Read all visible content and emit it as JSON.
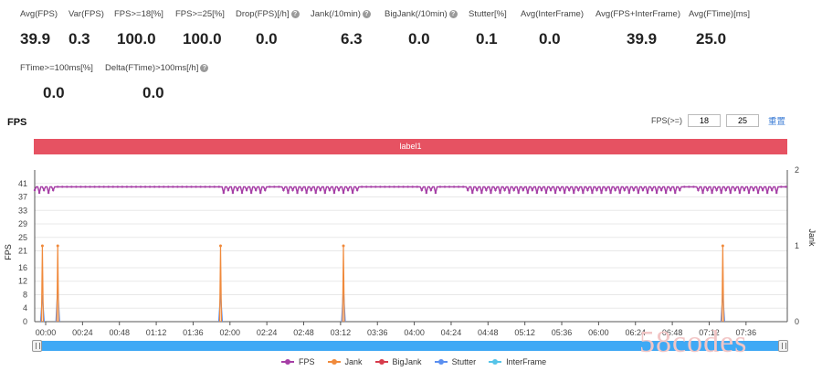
{
  "metrics": [
    {
      "id": "avg-fps",
      "label": "Avg(FPS)",
      "value": "39.9",
      "help": false
    },
    {
      "id": "var-fps",
      "label": "Var(FPS)",
      "value": "0.3",
      "help": false
    },
    {
      "id": "fps-ge-18",
      "label": "FPS>=18[%]",
      "value": "100.0",
      "help": false
    },
    {
      "id": "fps-ge-25",
      "label": "FPS>=25[%]",
      "value": "100.0",
      "help": false
    },
    {
      "id": "drop-fps",
      "label": "Drop(FPS)[/h]",
      "value": "0.0",
      "help": true
    },
    {
      "id": "jank",
      "label": "Jank(/10min)",
      "value": "6.3",
      "help": true
    },
    {
      "id": "bigjank",
      "label": "BigJank(/10min)",
      "value": "0.0",
      "help": true
    },
    {
      "id": "stutter",
      "label": "Stutter[%]",
      "value": "0.1",
      "help": false
    },
    {
      "id": "avg-interframe",
      "label": "Avg(InterFrame)",
      "value": "0.0",
      "help": false
    },
    {
      "id": "avg-fps-interframe",
      "label": "Avg(FPS+InterFrame)",
      "value": "39.9",
      "help": false
    },
    {
      "id": "avg-ftime",
      "label": "Avg(FTime)[ms]",
      "value": "25.0",
      "help": false
    },
    {
      "id": "ftime-ge-100",
      "label": "FTime>=100ms[%]",
      "value": "0.0",
      "help": false
    },
    {
      "id": "delta-ftime",
      "label": "Delta(FTime)>100ms[/h]",
      "value": "0.0",
      "help": true
    }
  ],
  "chart_title": "FPS",
  "help_glyph": "?",
  "threshold": {
    "label": "FPS(>=)",
    "value1": "18",
    "value2": "25",
    "reset": "重置"
  },
  "label_bar": {
    "text": "label1"
  },
  "watermark": "58codes",
  "colors": {
    "fps": "#a63fa6",
    "jank": "#f08a3c",
    "bigjank": "#d73c4c",
    "stutter": "#5b8ff0",
    "interframe": "#56c4e8",
    "label_bar": "#e65262",
    "scrollbar": "#3fa9f5"
  },
  "legend": [
    {
      "name": "FPS",
      "color": "#a63fa6"
    },
    {
      "name": "Jank",
      "color": "#f08a3c"
    },
    {
      "name": "BigJank",
      "color": "#d73c4c"
    },
    {
      "name": "Stutter",
      "color": "#5b8ff0"
    },
    {
      "name": "InterFrame",
      "color": "#56c4e8"
    }
  ],
  "chart_data": {
    "type": "line",
    "ylabel": "FPS",
    "y2label": "Jank",
    "y_ticks": [
      0,
      4,
      8,
      12,
      16,
      21,
      25,
      29,
      33,
      37,
      41
    ],
    "y_range": [
      0,
      45
    ],
    "y2_ticks": [
      0,
      1,
      2
    ],
    "y2_range": [
      0,
      2
    ],
    "x_ticks": [
      "00:00",
      "00:24",
      "00:48",
      "01:12",
      "01:36",
      "02:00",
      "02:24",
      "02:48",
      "03:12",
      "03:36",
      "04:00",
      "04:24",
      "04:48",
      "05:12",
      "05:36",
      "06:00",
      "06:24",
      "06:48",
      "07:12",
      "07:36"
    ],
    "x_range_seconds": [
      0,
      490
    ],
    "fps_baseline": 40,
    "fps_dip_value": 39,
    "fps_dip_ranges": [
      [
        0,
        14
      ],
      [
        122,
        150
      ],
      [
        160,
        210
      ],
      [
        250,
        262
      ],
      [
        282,
        420
      ],
      [
        430,
        485
      ]
    ],
    "jank_spike_times_seconds": [
      5,
      15,
      121,
      201,
      448
    ],
    "jank_spike_value": 1,
    "stutter_spike_times_seconds": [
      5,
      15,
      121,
      201,
      448
    ],
    "stutter_spike_values": [
      0.35,
      0.45,
      0.38,
      0.45,
      0.38
    ]
  }
}
